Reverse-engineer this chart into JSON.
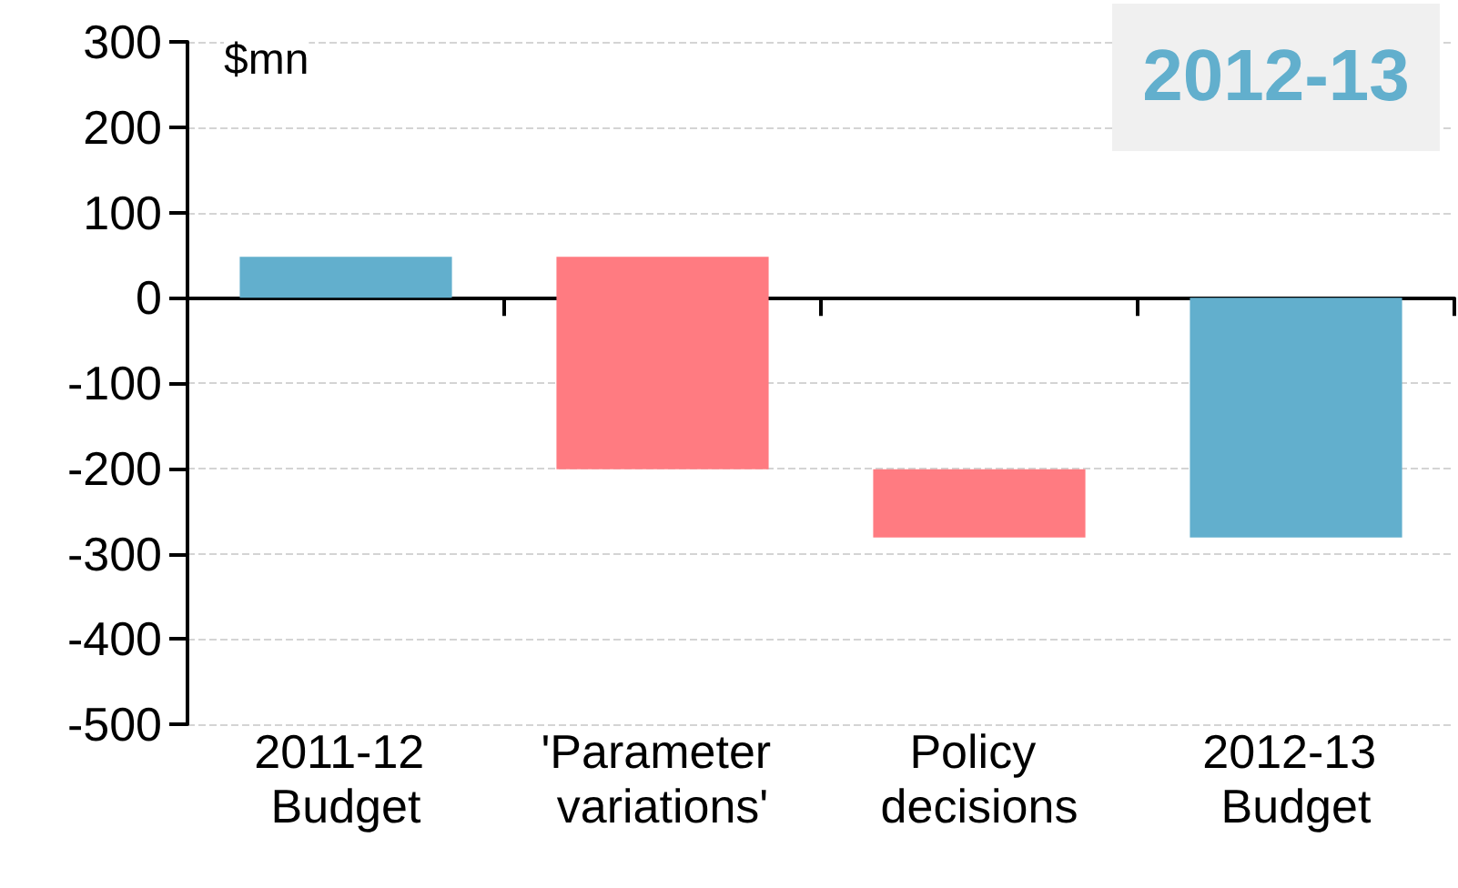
{
  "chart_data": {
    "type": "bar",
    "title": "2012-13",
    "ylabel": "$mn",
    "categories": [
      "2011-12 Budget",
      "'Parameter variations'",
      "Policy decisions",
      "2012-13 Budget"
    ],
    "values": [
      48,
      -249,
      -80,
      -281
    ],
    "base": [
      0,
      48,
      -201,
      0
    ],
    "colors": [
      "#62afcd",
      "#ff7b81",
      "#ff7b81",
      "#62afcd"
    ],
    "ylim": [
      -500,
      300
    ],
    "yticks": [
      -500,
      -400,
      -300,
      -200,
      -100,
      0,
      100,
      200,
      300
    ],
    "grid": "y"
  }
}
